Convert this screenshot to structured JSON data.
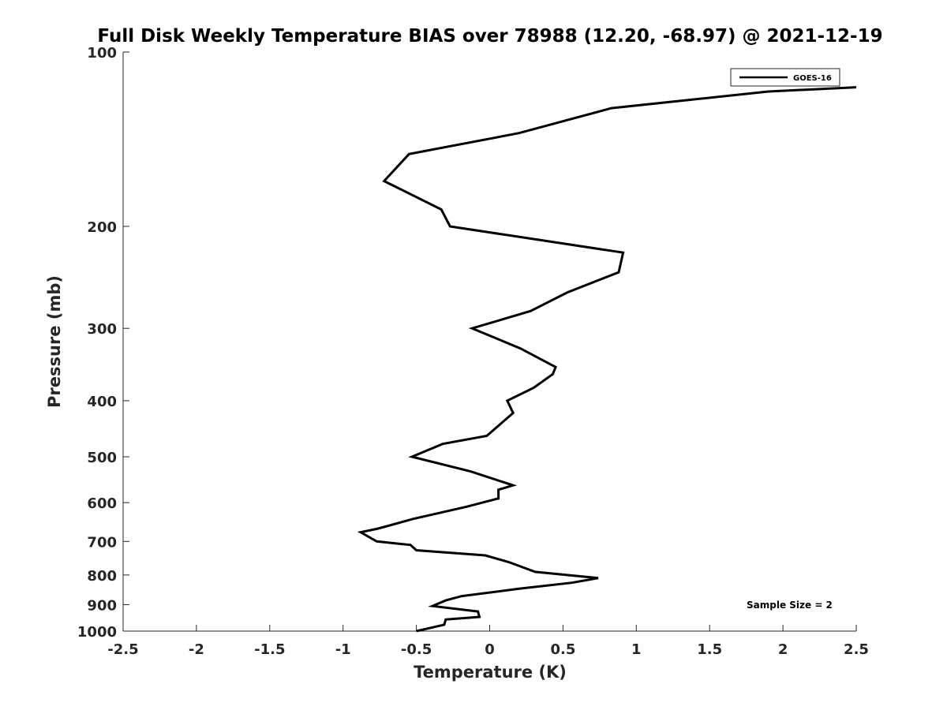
{
  "chart_data": {
    "type": "line",
    "title": "Full Disk Weekly Temperature BIAS over 78988 (12.20, -68.97) @ 2021-12-19",
    "xlabel": "Temperature (K)",
    "ylabel": "Pressure (mb)",
    "xlim": [
      -2.5,
      2.5
    ],
    "ylim": [
      1000,
      100
    ],
    "y_scale": "log",
    "y_reversed": true,
    "x_ticks": [
      -2.5,
      -2,
      -1.5,
      -1,
      -0.5,
      0,
      0.5,
      1,
      1.5,
      2,
      2.5
    ],
    "x_tick_labels": [
      "-2.5",
      "-2",
      "-1.5",
      "-1",
      "-0.5",
      "0",
      "0.5",
      "1",
      "1.5",
      "2",
      "2.5"
    ],
    "y_ticks": [
      100,
      200,
      300,
      400,
      500,
      600,
      700,
      800,
      900,
      1000
    ],
    "y_tick_labels": [
      "100",
      "200",
      "300",
      "400",
      "500",
      "600",
      "700",
      "800",
      "900",
      "1000"
    ],
    "grid": false,
    "legend_position": "top-right",
    "annotation": "Sample Size = 2",
    "series": [
      {
        "name": "GOES-16",
        "color": "#000000",
        "points": [
          [
            2.5,
            115
          ],
          [
            1.9,
            117
          ],
          [
            0.83,
            125
          ],
          [
            0.2,
            138
          ],
          [
            -0.55,
            150
          ],
          [
            -0.72,
            167
          ],
          [
            -0.33,
            187
          ],
          [
            -0.27,
            200
          ],
          [
            0.91,
            222
          ],
          [
            0.88,
            240
          ],
          [
            0.53,
            260
          ],
          [
            0.28,
            280
          ],
          [
            -0.12,
            300
          ],
          [
            0.21,
            325
          ],
          [
            0.45,
            350
          ],
          [
            0.43,
            360
          ],
          [
            0.3,
            380
          ],
          [
            0.12,
            400
          ],
          [
            0.16,
            420
          ],
          [
            -0.02,
            460
          ],
          [
            -0.32,
            475
          ],
          [
            -0.53,
            500
          ],
          [
            -0.13,
            530
          ],
          [
            0.16,
            560
          ],
          [
            0.06,
            570
          ],
          [
            0.06,
            590
          ],
          [
            -0.16,
            610
          ],
          [
            -0.52,
            640
          ],
          [
            -0.76,
            665
          ],
          [
            -0.88,
            675
          ],
          [
            -0.77,
            700
          ],
          [
            -0.54,
            710
          ],
          [
            -0.5,
            725
          ],
          [
            -0.03,
            740
          ],
          [
            0.13,
            760
          ],
          [
            0.31,
            790
          ],
          [
            0.74,
            810
          ],
          [
            0.56,
            825
          ],
          [
            0.2,
            845
          ],
          [
            -0.19,
            870
          ],
          [
            -0.3,
            885
          ],
          [
            -0.39,
            905
          ],
          [
            -0.08,
            925
          ],
          [
            -0.07,
            945
          ],
          [
            -0.3,
            955
          ],
          [
            -0.31,
            975
          ],
          [
            -0.5,
            1000
          ]
        ]
      }
    ]
  }
}
